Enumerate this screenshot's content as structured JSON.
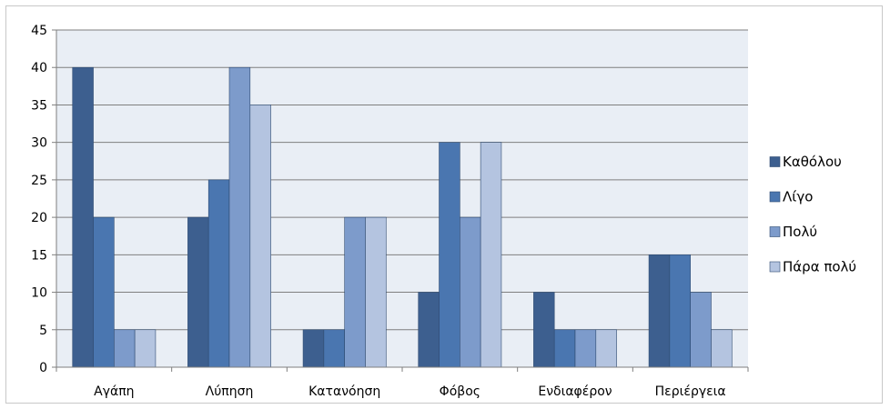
{
  "chart_data": {
    "type": "bar",
    "categories": [
      "Αγάπη",
      "Λύπηση",
      "Κατανόηση",
      "Φόβος",
      "Ενδιαφέρον",
      "Περιέργεια"
    ],
    "series": [
      {
        "name": "Καθόλου",
        "values": [
          40,
          20,
          5,
          10,
          10,
          15
        ],
        "color": "#3d5f8f"
      },
      {
        "name": "Λίγο",
        "values": [
          20,
          25,
          5,
          30,
          5,
          15
        ],
        "color": "#4a76b0"
      },
      {
        "name": "Πολύ",
        "values": [
          5,
          40,
          20,
          20,
          5,
          10
        ],
        "color": "#7d9bcb"
      },
      {
        "name": "Πάρα πολύ",
        "values": [
          5,
          35,
          20,
          30,
          5,
          5
        ],
        "color": "#b4c4e0"
      }
    ],
    "ylim": [
      0,
      45
    ],
    "yticks": [
      0,
      5,
      10,
      15,
      20,
      25,
      30,
      35,
      40,
      45
    ],
    "grid": true,
    "legend_position": "right",
    "plot_background": "#e9eef5",
    "gridline_color": "#7f7f7f"
  }
}
